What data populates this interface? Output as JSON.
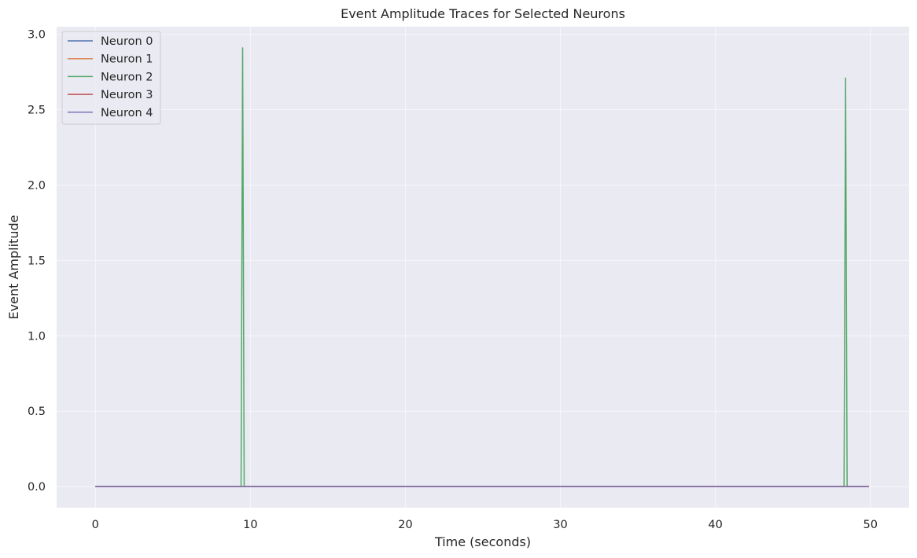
{
  "chart_data": {
    "type": "line",
    "title": "Event Amplitude Traces for Selected Neurons",
    "xlabel": "Time (seconds)",
    "ylabel": "Event Amplitude",
    "xlim": [
      -2.5,
      52.5
    ],
    "ylim": [
      -0.14,
      3.05
    ],
    "x_ticks": [
      0,
      10,
      20,
      30,
      40,
      50
    ],
    "y_ticks": [
      0.0,
      0.5,
      1.0,
      1.5,
      2.0,
      2.5,
      3.0
    ],
    "x_tick_labels": [
      "0",
      "10",
      "20",
      "30",
      "40",
      "50"
    ],
    "y_tick_labels": [
      "0.0",
      "0.5",
      "1.0",
      "1.5",
      "2.0",
      "2.5",
      "3.0"
    ],
    "grid": true,
    "legend_position": "top-left",
    "x_range": [
      0,
      49.9
    ],
    "series": [
      {
        "name": "Neuron 0",
        "color": "#4c72b0",
        "points": [
          [
            0,
            0
          ],
          [
            49.9,
            0
          ]
        ]
      },
      {
        "name": "Neuron 1",
        "color": "#dd8452",
        "points": [
          [
            0,
            0
          ],
          [
            49.9,
            0
          ]
        ]
      },
      {
        "name": "Neuron 2",
        "color": "#55a868",
        "points": [
          [
            0,
            0
          ],
          [
            9.4,
            0
          ],
          [
            9.5,
            2.91
          ],
          [
            9.6,
            0
          ],
          [
            48.3,
            0
          ],
          [
            48.4,
            2.71
          ],
          [
            48.5,
            0
          ],
          [
            49.9,
            0
          ]
        ]
      },
      {
        "name": "Neuron 3",
        "color": "#c44e52",
        "points": [
          [
            0,
            0
          ],
          [
            49.9,
            0
          ]
        ]
      },
      {
        "name": "Neuron 4",
        "color": "#8172b3",
        "points": [
          [
            0,
            0
          ],
          [
            49.9,
            0
          ]
        ]
      }
    ]
  }
}
